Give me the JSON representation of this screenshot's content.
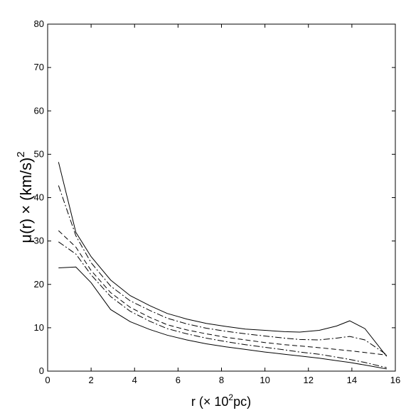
{
  "chart_data": {
    "type": "line",
    "xlabel_main": "r (",
    "xlabel_times": "× 10",
    "xlabel_sup": "2",
    "xlabel_unit": "pc)",
    "ylabel_main": "μ(r) × (km/s)",
    "ylabel_sup": "2",
    "xlim": [
      0,
      16
    ],
    "ylim": [
      0,
      80
    ],
    "xticks": [
      0,
      2,
      4,
      6,
      8,
      10,
      12,
      14,
      16
    ],
    "yticks": [
      0,
      10,
      20,
      30,
      40,
      50,
      60,
      70,
      80
    ],
    "grid": false,
    "series": [
      {
        "style": "solid",
        "x": [
          0.5,
          1.3,
          2.0,
          2.9,
          3.8,
          4.7,
          5.5,
          6.4,
          7.3,
          8.2,
          9.1,
          10.0,
          10.9,
          11.6,
          12.5,
          13.3,
          13.9,
          14.6,
          15.6
        ],
        "y": [
          48.2,
          32.0,
          26.4,
          21.0,
          17.4,
          15.1,
          13.3,
          12.0,
          11.0,
          10.3,
          9.7,
          9.4,
          9.1,
          9.0,
          9.4,
          10.4,
          11.6,
          9.8,
          3.4
        ]
      },
      {
        "style": "dashdot",
        "x": [
          0.5,
          1.3,
          2.0,
          2.9,
          3.8,
          4.7,
          5.5,
          6.4,
          7.3,
          8.2,
          9.1,
          10.0,
          10.9,
          11.6,
          12.5,
          13.3,
          13.9,
          14.6,
          15.6
        ],
        "y": [
          42.8,
          31.2,
          25.0,
          19.6,
          16.2,
          14.0,
          12.2,
          10.9,
          9.9,
          9.2,
          8.6,
          8.1,
          7.6,
          7.3,
          7.2,
          7.6,
          8.0,
          7.2,
          3.8
        ]
      },
      {
        "style": "dashed",
        "x": [
          0.5,
          1.3,
          2.0,
          2.9,
          3.8,
          4.7,
          5.5,
          6.4,
          7.3,
          8.2,
          9.1,
          10.0,
          10.9,
          11.6,
          12.5,
          13.3,
          13.9,
          14.6,
          15.6
        ],
        "y": [
          32.4,
          28.6,
          23.2,
          18.1,
          14.7,
          12.4,
          10.7,
          9.5,
          8.6,
          7.8,
          7.2,
          6.6,
          6.1,
          5.8,
          5.4,
          5.0,
          4.7,
          4.3,
          3.7
        ]
      },
      {
        "style": "dashdot",
        "x": [
          0.5,
          1.3,
          2.0,
          2.9,
          3.8,
          4.7,
          5.5,
          6.4,
          7.3,
          8.2,
          9.1,
          10.0,
          10.9,
          11.6,
          12.5,
          13.3,
          13.9,
          14.6,
          15.6
        ],
        "y": [
          29.8,
          27.0,
          22.2,
          17.2,
          13.8,
          11.5,
          9.8,
          8.6,
          7.6,
          6.8,
          6.1,
          5.5,
          4.9,
          4.4,
          3.9,
          3.2,
          2.7,
          2.0,
          0.8
        ]
      },
      {
        "style": "solid",
        "x": [
          0.5,
          1.3,
          2.0,
          2.9,
          3.8,
          4.7,
          5.5,
          6.4,
          7.3,
          8.2,
          9.1,
          10.0,
          10.9,
          11.6,
          12.5,
          13.3,
          13.9,
          14.6,
          15.6
        ],
        "y": [
          23.8,
          24.0,
          20.4,
          14.2,
          11.4,
          9.6,
          8.3,
          7.2,
          6.3,
          5.6,
          5.0,
          4.4,
          3.9,
          3.5,
          3.0,
          2.4,
          2.0,
          1.4,
          0.5
        ]
      }
    ]
  }
}
